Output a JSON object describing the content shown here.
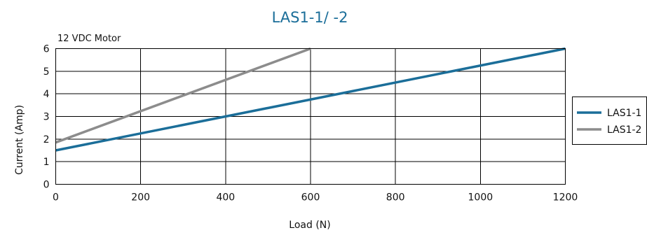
{
  "chart_data": {
    "type": "line",
    "title": "LAS1-1/ -2",
    "subtitle": "12 VDC Motor",
    "xlabel": "Load (N)",
    "ylabel": "Current (Amp)",
    "xlim": [
      0,
      1200
    ],
    "ylim": [
      0,
      6
    ],
    "x_ticks": [
      0,
      200,
      400,
      600,
      800,
      1000,
      1200
    ],
    "y_ticks": [
      0,
      1,
      2,
      3,
      4,
      5,
      6
    ],
    "grid": true,
    "legend_position": "right",
    "series": [
      {
        "name": "LAS1-1",
        "color": "#1b6e99",
        "points": [
          [
            0,
            1.5
          ],
          [
            1200,
            6.0
          ]
        ]
      },
      {
        "name": "LAS1-2",
        "color": "#8c8c8c",
        "points": [
          [
            0,
            1.85
          ],
          [
            600,
            6.0
          ]
        ]
      }
    ]
  }
}
